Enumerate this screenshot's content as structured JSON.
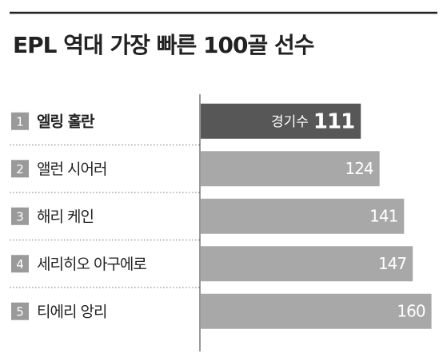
{
  "chart_data": {
    "type": "hbar",
    "title": "EPL 역대 가장 빠른 100골 선수",
    "ranks": [
      1,
      2,
      3,
      4,
      5
    ],
    "categories": [
      "엘링 홀란",
      "앨런 시어러",
      "해리 케인",
      "세리히오 아구에로",
      "티에리 앙리"
    ],
    "values": [
      111,
      124,
      141,
      147,
      160
    ],
    "xlabel": "경기수",
    "colors": [
      "#575757",
      "#a8a8a8",
      "#a8a8a8",
      "#a8a8a8",
      "#a8a8a8"
    ],
    "xlim": [
      0,
      163
    ]
  }
}
